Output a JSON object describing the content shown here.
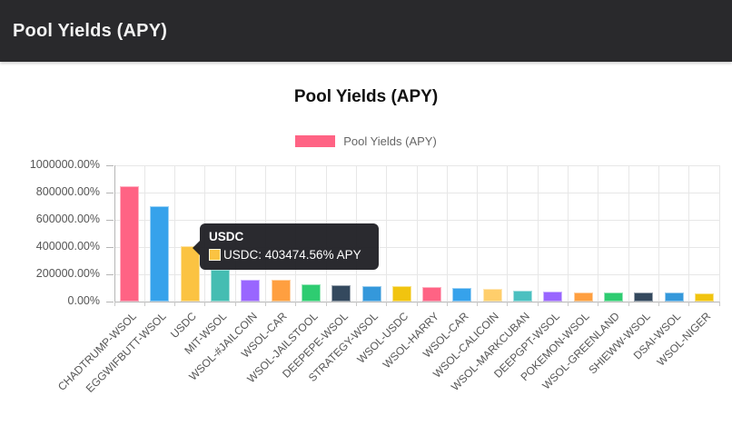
{
  "header": {
    "title": "Pool Yields (APY)"
  },
  "chart_data": {
    "type": "bar",
    "title": "Pool Yields (APY)",
    "legend": {
      "label": "Pool Yields (APY)",
      "color": "#ff6384",
      "position": "top"
    },
    "categories": [
      "CHADTRUMP-WSOL",
      "EGGWIFBUTT-WSOL",
      "USDC",
      "MIT-WSOL",
      "WSOL-#JAILCOIN",
      "WSOL-CAR",
      "WSOL-JAILSTOOL",
      "DEEPEPE-WSOL",
      "STRATEGY-WSOL",
      "WSOL-USDC",
      "WSOL-HARRY",
      "WSOL-CAR",
      "WSOL-CALICOIN",
      "WSOL-MARKCUBAN",
      "DEEPGPT-WSOL",
      "POKEMON-WSOL",
      "WSOL-GREENLAND",
      "SHIEWW-WSOL",
      "DSAI-WSOL",
      "WSOL-NIGER"
    ],
    "series": [
      {
        "name": "Pool Yields (APY)",
        "values": [
          845000,
          700000,
          403474.56,
          235000,
          163000,
          158000,
          126000,
          119000,
          116000,
          113000,
          109000,
          100000,
          92000,
          80000,
          75000,
          69000,
          67000,
          66000,
          65000,
          62000
        ]
      }
    ],
    "bar_colors": [
      "#ff6384",
      "#36a2eb",
      "#fbc342",
      "#45bdb2",
      "#9966ff",
      "#ff9f40",
      "#2ecc71",
      "#34495e",
      "#3498db",
      "#f1c40f",
      "#ff6384",
      "#36a2eb",
      "#ffce6b",
      "#4bc0c0",
      "#9966ff",
      "#ff9f40",
      "#2ecc71",
      "#34495e",
      "#3498db",
      "#f1c40f"
    ],
    "ylabel": "",
    "xlabel": "",
    "ylim": [
      0,
      1000000
    ],
    "y_ticks": [
      "1000000.00%",
      "800000.00%",
      "600000.00%",
      "400000.00%",
      "200000.00%",
      "0.00%"
    ],
    "grid": true,
    "unit": "%"
  },
  "tooltip": {
    "title": "USDC",
    "text": "USDC: 403474.56% APY",
    "value": 403474.56,
    "unit": "% APY",
    "swatch_color": "#fbc342"
  },
  "colors": {
    "header_bg": "#29292c",
    "header_text": "#f2f2f2",
    "grid": "#e7e7e7",
    "axis": "#b5b5b5",
    "tick_text": "#555555",
    "title_text": "#111111",
    "legend_text": "#666666",
    "tooltip_bg": "#212126"
  }
}
